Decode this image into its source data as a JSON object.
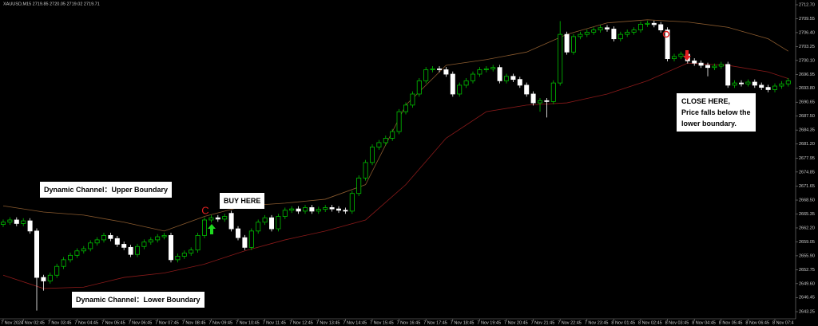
{
  "chart_data": {
    "type": "candlestick",
    "title": "XAUUSD,M15  2719.85 2720.05 2719.02 2719.71",
    "categories": [
      "7 Nov 2024",
      null,
      null,
      "7 Nov 02:45",
      null,
      null,
      null,
      "7 Nov 03:45",
      null,
      null,
      null,
      "7 Nov 04:45",
      null,
      null,
      null,
      "7 Nov 05:45",
      null,
      null,
      null,
      "7 Nov 06:45",
      null,
      null,
      null,
      "7 Nov 07:45",
      null,
      null,
      null,
      "7 Nov 08:45",
      null,
      null,
      null,
      "7 Nov 09:45",
      null,
      null,
      null,
      "7 Nov 10:45",
      null,
      null,
      null,
      "7 Nov 11:45",
      null,
      null,
      null,
      "7 Nov 12:45",
      null,
      null,
      null,
      "7 Nov 13:45",
      null,
      null,
      null,
      "7 Nov 14:45",
      null,
      null,
      null,
      "7 Nov 15:45",
      null,
      null,
      null,
      "7 Nov 16:45",
      null,
      null,
      null,
      "7 Nov 17:45",
      null,
      null,
      null,
      "7 Nov 18:45",
      null,
      null,
      null,
      "7 Nov 19:45",
      null,
      null,
      null,
      "7 Nov 20:45",
      null,
      null,
      null,
      "7 Nov 21:45",
      null,
      null,
      null,
      "7 Nov 22:45",
      null,
      null,
      null,
      "7 Nov 23:45",
      null,
      null,
      null,
      "8 Nov 01:45",
      null,
      null,
      null,
      "8 Nov 02:45",
      null,
      null,
      null,
      "8 Nov 03:45",
      null,
      null,
      null,
      "8 Nov 04:45",
      null,
      null,
      null,
      "8 Nov 05:45",
      null,
      null,
      null,
      "8 Nov 06:45",
      null,
      null,
      null,
      "8 Nov 07:4",
      null,
      null
    ],
    "open": [
      2663.0,
      2663.5,
      2664.0,
      2663.2,
      2663.8,
      2661.5,
      2651.0,
      2650.2,
      2651.5,
      2653.5,
      2655.0,
      2656.0,
      2657.0,
      2657.5,
      2658.8,
      2659.5,
      2660.5,
      2659.8,
      2658.5,
      2657.8,
      2656.2,
      2658.0,
      2659.0,
      2659.5,
      2660.2,
      2660.5,
      2655.0,
      2655.8,
      2656.5,
      2657.2,
      2660.5,
      2664.0,
      2664.5,
      2664.2,
      2665.5,
      2662.0,
      2660.0,
      2657.8,
      2661.5,
      2663.5,
      2664.5,
      2662.0,
      2664.8,
      2666.2,
      2666.5,
      2666.0,
      2666.8,
      2666.0,
      2666.4,
      2666.8,
      2666.5,
      2666.2,
      2666.0,
      2670.0,
      2673.5,
      2677.0,
      2680.5,
      2681.5,
      2682.5,
      2684.0,
      2688.5,
      2690.0,
      2692.5,
      2695.5,
      2698.0,
      2698.2,
      2698.0,
      2697.0,
      2692.5,
      2694.5,
      2695.5,
      2697.0,
      2698.0,
      2698.2,
      2698.5,
      2695.5,
      2696.5,
      2695.8,
      2694.5,
      2692.5,
      2690.5,
      2691.0,
      2690.8,
      2695.0,
      2706.0,
      2702.0,
      2705.5,
      2706.0,
      2706.5,
      2707.0,
      2707.5,
      2707.2,
      2705.0,
      2706.0,
      2706.5,
      2707.0,
      2708.3,
      2708.5,
      2708.2,
      2707.0,
      2700.5,
      2701.0,
      2701.5,
      2700.0,
      2699.5,
      2699.0,
      2698.5,
      2698.8,
      2699.2,
      2694.5,
      2695.0,
      2694.8,
      2695.2,
      2694.5,
      2694.0,
      2693.5,
      2694.3,
      2694.8
    ],
    "high": [
      2664.1,
      2664.6,
      2664.6,
      2664.4,
      2664.4,
      2662.1,
      2651.6,
      2652.1,
      2654.1,
      2655.6,
      2656.6,
      2657.6,
      2658.1,
      2659.4,
      2660.1,
      2661.1,
      2661.1,
      2660.4,
      2659.1,
      2658.4,
      2658.6,
      2659.6,
      2660.1,
      2660.8,
      2661.1,
      2661.1,
      2656.4,
      2657.1,
      2657.8,
      2661.1,
      2664.6,
      2665.1,
      2665.1,
      2665.4,
      2666.1,
      2662.6,
      2660.6,
      2662.1,
      2664.1,
      2665.1,
      2665.1,
      2665.4,
      2666.8,
      2667.1,
      2667.1,
      2667.4,
      2667.4,
      2667.0,
      2667.4,
      2667.4,
      2667.1,
      2666.8,
      2670.6,
      2674.1,
      2677.6,
      2681.1,
      2682.1,
      2683.1,
      2684.6,
      2689.1,
      2690.6,
      2693.1,
      2696.1,
      2698.6,
      2698.8,
      2698.8,
      2698.6,
      2697.6,
      2695.1,
      2696.1,
      2697.6,
      2698.6,
      2698.8,
      2699.1,
      2699.1,
      2697.1,
      2697.1,
      2696.4,
      2695.1,
      2693.1,
      2691.6,
      2691.6,
      2695.6,
      2709.0,
      2706.6,
      2706.1,
      2706.6,
      2707.1,
      2707.6,
      2708.1,
      2708.1,
      2707.8,
      2706.6,
      2707.1,
      2707.6,
      2708.9,
      2709.1,
      2709.1,
      2708.8,
      2707.6,
      2701.6,
      2702.1,
      2702.1,
      2700.6,
      2700.1,
      2699.6,
      2699.4,
      2699.8,
      2699.8,
      2695.6,
      2695.6,
      2695.8,
      2695.8,
      2695.1,
      2694.6,
      2694.9,
      2695.4,
      2696.1
    ],
    "low": [
      2662.4,
      2662.9,
      2662.6,
      2662.6,
      2660.9,
      2643.5,
      2648.0,
      2649.6,
      2650.9,
      2652.9,
      2654.4,
      2655.4,
      2656.4,
      2656.9,
      2658.2,
      2658.9,
      2659.2,
      2657.9,
      2657.2,
      2655.6,
      2655.6,
      2657.4,
      2658.4,
      2658.9,
      2659.6,
      2654.4,
      2654.4,
      2655.2,
      2655.9,
      2656.6,
      2659.9,
      2663.4,
      2663.6,
      2663.6,
      2661.4,
      2659.4,
      2657.2,
      2657.2,
      2660.9,
      2662.9,
      2661.4,
      2661.4,
      2664.2,
      2665.6,
      2665.4,
      2665.4,
      2665.4,
      2665.4,
      2665.8,
      2665.9,
      2665.6,
      2665.4,
      2665.4,
      2669.4,
      2672.9,
      2676.4,
      2679.9,
      2680.9,
      2681.9,
      2683.4,
      2687.9,
      2689.4,
      2691.9,
      2694.9,
      2697.4,
      2697.4,
      2696.4,
      2691.9,
      2691.9,
      2693.9,
      2694.9,
      2696.4,
      2697.4,
      2697.6,
      2694.9,
      2694.9,
      2695.2,
      2693.9,
      2691.9,
      2689.9,
      2688.5,
      2687.2,
      2690.2,
      2694.4,
      2701.4,
      2701.4,
      2704.9,
      2705.4,
      2705.9,
      2706.4,
      2706.6,
      2704.4,
      2704.4,
      2705.4,
      2705.9,
      2706.4,
      2707.7,
      2707.6,
      2706.4,
      2699.9,
      2699.9,
      2700.4,
      2699.4,
      2698.9,
      2698.4,
      2696.5,
      2697.9,
      2698.2,
      2693.9,
      2693.9,
      2694.2,
      2694.2,
      2693.9,
      2693.4,
      2692.9,
      2692.9,
      2693.7,
      2694.2
    ],
    "close": [
      2663.5,
      2664.0,
      2663.2,
      2663.8,
      2661.5,
      2651.0,
      2650.2,
      2651.5,
      2653.5,
      2655.0,
      2656.0,
      2657.0,
      2657.5,
      2658.8,
      2659.5,
      2660.5,
      2659.8,
      2658.5,
      2657.8,
      2656.2,
      2658.0,
      2659.0,
      2659.5,
      2660.2,
      2660.5,
      2655.0,
      2655.8,
      2656.5,
      2657.2,
      2660.5,
      2664.0,
      2664.5,
      2664.2,
      2664.8,
      2662.0,
      2660.0,
      2657.8,
      2661.5,
      2663.5,
      2664.5,
      2662.0,
      2664.8,
      2666.2,
      2666.5,
      2666.0,
      2666.8,
      2666.0,
      2666.4,
      2666.8,
      2666.5,
      2666.2,
      2666.0,
      2670.0,
      2673.5,
      2677.0,
      2680.5,
      2681.5,
      2682.5,
      2684.0,
      2688.5,
      2690.0,
      2692.5,
      2695.5,
      2698.0,
      2698.2,
      2698.0,
      2697.0,
      2692.5,
      2694.5,
      2695.5,
      2697.0,
      2698.0,
      2698.2,
      2698.5,
      2695.5,
      2696.5,
      2695.8,
      2694.5,
      2692.5,
      2690.5,
      2691.0,
      2690.8,
      2695.0,
      2706.0,
      2702.0,
      2705.5,
      2706.0,
      2706.5,
      2707.0,
      2707.5,
      2707.2,
      2705.0,
      2706.0,
      2706.5,
      2707.0,
      2708.3,
      2708.5,
      2708.2,
      2707.0,
      2700.5,
      2701.0,
      2701.5,
      2700.0,
      2699.5,
      2699.0,
      2698.5,
      2698.8,
      2699.2,
      2694.5,
      2695.0,
      2694.8,
      2695.2,
      2694.5,
      2694.0,
      2693.5,
      2694.3,
      2694.8,
      2695.5
    ],
    "bull_color": "#00c000",
    "bear_color": "#ffffff",
    "bands": {
      "upper": {
        "color": "#8a5a2e",
        "x": [
          0,
          6,
          12,
          18,
          24,
          30,
          36,
          42,
          48,
          54,
          60,
          66,
          72,
          78,
          84,
          90,
          96,
          102,
          108,
          114,
          117
        ],
        "values": [
          2667.2,
          2665.8,
          2665.1,
          2663.5,
          2661.5,
          2664.8,
          2667.2,
          2667.8,
          2668.7,
          2672.0,
          2690.0,
          2699.0,
          2700.3,
          2702.0,
          2706.0,
          2708.6,
          2709.3,
          2708.8,
          2707.6,
          2705.0,
          2702.2
        ]
      },
      "lower": {
        "color": "#8b1a1a",
        "x": [
          0,
          6,
          12,
          18,
          24,
          30,
          36,
          42,
          48,
          54,
          60,
          66,
          72,
          78,
          84,
          90,
          96,
          102,
          108,
          114,
          117
        ],
        "values": [
          2651.5,
          2648.5,
          2648.8,
          2651.0,
          2652.0,
          2654.0,
          2657.0,
          2659.5,
          2661.5,
          2664.0,
          2672.0,
          2682.5,
          2688.5,
          2690.0,
          2690.5,
          2692.5,
          2695.5,
          2699.5,
          2699.0,
          2697.5,
          2696.0
        ]
      }
    },
    "ylim": [
      2641.63,
      2713.78
    ],
    "yticks": [
      {
        "value": 2712.7,
        "label": "2712.70"
      },
      2709.55,
      {
        "value": 2706.4,
        "label": "2706.40"
      },
      2703.25,
      {
        "value": 2700.1,
        "label": "2700.10"
      },
      2696.95,
      {
        "value": 2693.8,
        "label": "2693.80"
      },
      2690.65,
      {
        "value": 2687.5,
        "label": "2687.50"
      },
      2684.35,
      {
        "value": 2681.2,
        "label": "2681.20"
      },
      2677.95,
      2674.85,
      2671.65,
      {
        "value": 2668.5,
        "label": "2668.50"
      },
      2665.35,
      {
        "value": 2662.2,
        "label": "2662.20"
      },
      2659.05,
      {
        "value": 2655.9,
        "label": "2655.90"
      },
      2652.75,
      {
        "value": 2649.6,
        "label": "2649.60"
      },
      2646.45,
      2643.25
    ],
    "annotations": {
      "upper_note": "Dynamic Channel：Upper Boundary",
      "lower_note": "Dynamic Channel：Lower Boundary",
      "buy_note": "BUY HERE",
      "signal_letter": "C",
      "close_note": [
        "CLOSE HERE,",
        "Price falls below the",
        "lower boundary."
      ]
    }
  }
}
